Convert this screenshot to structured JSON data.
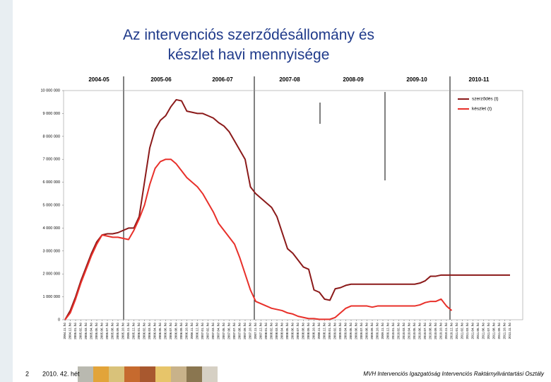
{
  "chart_data": {
    "type": "line",
    "title": "Az intervenciós szerződésállomány és készlet havi mennyisége",
    "season_labels": [
      "2004-05",
      "2005-06",
      "2006-07",
      "2007-08",
      "2008-09",
      "2009-10",
      "2010-11"
    ],
    "categories": [
      "2004.11. hó",
      "2004.12. hó",
      "2005.01. hó",
      "2005.02. hó",
      "2005.03. hó",
      "2005.04. hó",
      "2005.05. hó",
      "2005.06. hó",
      "2005.07. hó",
      "2005.08. hó",
      "2005.09. hó",
      "2005.10. hó",
      "2005.11. hó",
      "2005.12. hó",
      "2006.01. hó",
      "2006.02. hó",
      "2006.03. hó",
      "2006.04. hó",
      "2006.05. hó",
      "2006.06. hó",
      "2006.07. hó",
      "2006.08. hó",
      "2006.09. hó",
      "2006.10. hó",
      "2006.11. hó",
      "2006.12. hó",
      "2007.01. hó",
      "2007.02. hó",
      "2007.03. hó",
      "2007.04. hó",
      "2007.05. hó",
      "2007.06. hó",
      "2007.07. hó",
      "2007.08. hó",
      "2007.09. hó",
      "2007.10. hó",
      "2007.11. hó",
      "2007.12. hó",
      "2008.01. hó",
      "2008.02. hó",
      "2008.03. hó",
      "2008.04. hó",
      "2008.05. hó",
      "2008.06. hó",
      "2008.07. hó",
      "2008.08. hó",
      "2008.09. hó",
      "2008.10. hó",
      "2008.11. hó",
      "2008.12. hó",
      "2009.01. hó",
      "2009.02. hó",
      "2009.03. hó",
      "2009.04. hó",
      "2009.05. hó",
      "2009.06. hó",
      "2009.07. hó",
      "2009.08. hó",
      "2009.09. hó",
      "2009.10. hó",
      "2009.11. hó",
      "2009.12. hó",
      "2010.01. hó",
      "2010.02. hó",
      "2010.03. hó",
      "2010.04. hó",
      "2010.05. hó",
      "2010.06. hó",
      "2010.07. hó",
      "2010.08. hó",
      "2010.09. hó",
      "2010.10. hó",
      "2010.11. hó",
      "2010.12. hó",
      "2011.01. hó",
      "2011.02. hó",
      "2011.03. hó",
      "2011.04. hó",
      "2011.05. hó",
      "2011.06. hó",
      "2011.07. hó",
      "2011.08. hó",
      "2011.09. hó",
      "2011.10. hó",
      "2011.11. hó"
    ],
    "series": [
      {
        "name": "szerződés (t)",
        "color": "#8b1a1a",
        "values": [
          0,
          400000,
          1000000,
          1700000,
          2300000,
          2900000,
          3400000,
          3700000,
          3750000,
          3750000,
          3800000,
          3900000,
          4000000,
          4000000,
          4500000,
          6000000,
          7500000,
          8300000,
          8700000,
          8900000,
          9300000,
          9600000,
          9550000,
          9100000,
          9050000,
          9000000,
          9000000,
          8900000,
          8800000,
          8600000,
          8450000,
          8200000,
          7800000,
          7400000,
          7000000,
          5800000,
          5500000,
          5300000,
          5100000,
          4900000,
          4500000,
          3800000,
          3100000,
          2900000,
          2600000,
          2300000,
          2200000,
          1300000,
          1200000,
          900000,
          850000,
          1350000,
          1400000,
          1500000,
          1550000,
          1550000,
          1550000,
          1550000,
          1550000,
          1550000,
          1550000,
          1550000,
          1550000,
          1550000,
          1550000,
          1550000,
          1550000,
          1600000,
          1700000,
          1900000,
          1900000,
          1950000,
          1950000,
          1950000,
          1950000,
          1950000,
          1950000,
          1950000,
          1950000,
          1950000,
          1950000,
          1950000,
          1950000,
          1950000,
          1950000
        ]
      },
      {
        "name": "készlet (t)",
        "color": "#e8302a",
        "values": [
          0,
          300000,
          900000,
          1600000,
          2200000,
          2800000,
          3300000,
          3700000,
          3650000,
          3600000,
          3600000,
          3550000,
          3500000,
          3900000,
          4400000,
          5000000,
          5900000,
          6600000,
          6900000,
          7000000,
          7000000,
          6800000,
          6500000,
          6200000,
          6000000,
          5800000,
          5500000,
          5100000,
          4700000,
          4200000,
          3900000,
          3600000,
          3300000,
          2700000,
          2000000,
          1300000,
          800000,
          700000,
          600000,
          500000,
          450000,
          400000,
          300000,
          250000,
          150000,
          100000,
          50000,
          50000,
          20000,
          20000,
          20000,
          100000,
          300000,
          500000,
          600000,
          600000,
          600000,
          600000,
          550000,
          600000,
          600000,
          600000,
          600000,
          600000,
          600000,
          600000,
          600000,
          650000,
          750000,
          800000,
          800000,
          900000,
          600000,
          400000,
          null,
          null,
          null,
          null,
          null,
          null,
          null,
          null,
          null,
          null,
          null
        ]
      }
    ],
    "ylim": [
      0,
      10000000
    ],
    "yticks": [
      0,
      {
        "value": 1000000,
        "label": "1 000 000"
      },
      {
        "value": 2000000,
        "label": "2 000 000"
      },
      {
        "value": 3000000,
        "label": "3 000 000"
      },
      {
        "value": 4000000,
        "label": "4 000 000"
      },
      {
        "value": 5000000,
        "label": "5 000 000"
      },
      {
        "value": 6000000,
        "label": "6 000 000"
      },
      {
        "value": 7000000,
        "label": "7 000 000"
      },
      {
        "value": 8000000,
        "label": "8 000 000"
      },
      {
        "value": 9000000,
        "label": "9 000 000"
      },
      {
        "value": 10000000,
        "label": "10 000 000"
      }
    ],
    "legend": "top-right",
    "grid": false
  },
  "footer": {
    "page": "2",
    "week": "2010. 42. hét",
    "org": "MVH Intervenciós Igazgatóság Intervenciós Raktárnyilvántartási Osztály"
  }
}
